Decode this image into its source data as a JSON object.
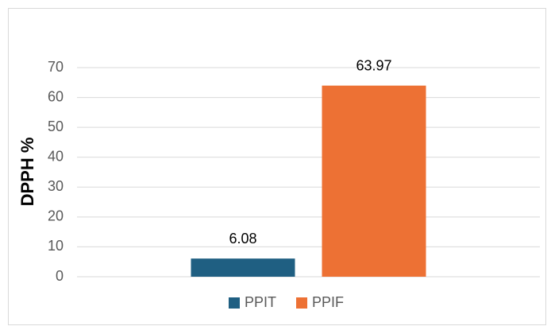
{
  "chart_data": {
    "type": "bar",
    "y_label": "DPPH %",
    "categories": [
      null
    ],
    "series": [
      {
        "name": "PPIT",
        "color": "#1f5f82",
        "values": [
          6.08
        ]
      },
      {
        "name": "PPIF",
        "color": "#ed7134",
        "values": [
          63.97
        ]
      }
    ],
    "ylim": [
      0,
      70
    ],
    "yticks": [
      0,
      10,
      20,
      30,
      40,
      50,
      60,
      70
    ],
    "grid": true,
    "legend": "bottom"
  }
}
